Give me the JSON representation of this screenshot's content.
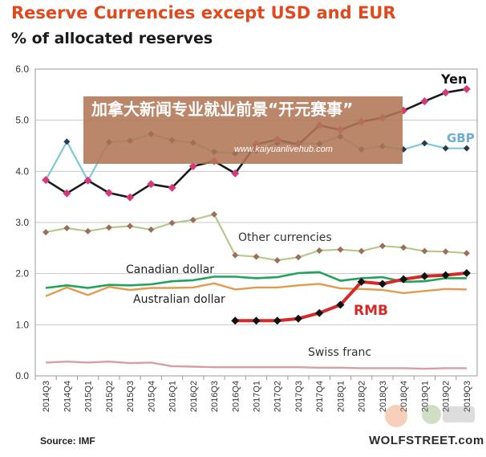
{
  "header": {
    "title": "Reserve Currencies except USD and EUR",
    "subtitle": "% of allocated reserves"
  },
  "footer": {
    "source": "Source: IMF",
    "brand": "WOLFSTREET.com"
  },
  "overlay": {
    "title": "加拿大新闻专业就业前景“开元赛事”",
    "url": "www.kaiyuanlivehub.com"
  },
  "colors": {
    "yen": "#1a1a1a",
    "yen_marker": "#d6397a",
    "gbp": "#7ec8d8",
    "gbp_marker": "#2b3a4a",
    "other": "#b5c98c",
    "other_marker": "#9a6e5a",
    "cad": "#22a35a",
    "aud": "#e39a4e",
    "rmb": "#d42a2a",
    "rmb_marker": "#111111",
    "chf": "#d4a0a6",
    "grid": "#c8c8c8",
    "title": "#e0481d",
    "overlay": "#b27656"
  },
  "chart_data": {
    "type": "line",
    "title": "Reserve Currencies except USD and EUR",
    "ylabel": "% of allocated reserves",
    "ylim": [
      0,
      6
    ],
    "yticks": [
      "0.0",
      "1.0",
      "2.0",
      "3.0",
      "4.0",
      "5.0",
      "6.0"
    ],
    "grid": true,
    "categories": [
      "2014Q3",
      "2014Q4",
      "2015Q1",
      "2015Q2",
      "2015Q3",
      "2015Q4",
      "2016Q1",
      "2016Q2",
      "2016Q3",
      "2016Q4",
      "2017Q1",
      "2017Q2",
      "2017Q3",
      "2017Q4",
      "2018Q1",
      "2018Q2",
      "2018Q3",
      "2018Q4",
      "2019Q1",
      "2019Q2",
      "2019Q3"
    ],
    "series": [
      {
        "name": "Yen",
        "key": "yen",
        "values": [
          3.83,
          3.57,
          3.82,
          3.58,
          3.49,
          3.75,
          3.68,
          4.1,
          4.2,
          3.96,
          4.53,
          4.62,
          4.52,
          4.9,
          4.81,
          4.97,
          5.05,
          5.19,
          5.37,
          5.54,
          5.61
        ]
      },
      {
        "name": "GBP",
        "key": "gbp",
        "values": [
          3.83,
          4.58,
          3.82,
          4.57,
          4.6,
          4.73,
          4.61,
          4.56,
          4.38,
          4.35,
          4.4,
          4.55,
          4.55,
          4.54,
          4.68,
          4.43,
          4.49,
          4.43,
          4.55,
          4.45,
          4.45
        ]
      },
      {
        "name": "Other currencies",
        "key": "other",
        "values": [
          2.81,
          2.89,
          2.83,
          2.9,
          2.93,
          2.86,
          2.99,
          3.05,
          3.16,
          2.36,
          2.33,
          2.26,
          2.32,
          2.45,
          2.47,
          2.44,
          2.54,
          2.51,
          2.44,
          2.43,
          2.4
        ]
      },
      {
        "name": "Canadian dollar",
        "key": "cad",
        "values": [
          1.72,
          1.77,
          1.72,
          1.78,
          1.77,
          1.79,
          1.85,
          1.87,
          1.94,
          1.94,
          1.91,
          1.93,
          2.01,
          2.03,
          1.86,
          1.91,
          1.93,
          1.84,
          1.85,
          1.91,
          1.91
        ]
      },
      {
        "name": "Australian dollar",
        "key": "aud",
        "values": [
          1.56,
          1.73,
          1.58,
          1.74,
          1.68,
          1.72,
          1.72,
          1.73,
          1.81,
          1.69,
          1.73,
          1.73,
          1.77,
          1.8,
          1.71,
          1.7,
          1.68,
          1.62,
          1.66,
          1.7,
          1.69
        ]
      },
      {
        "name": "RMB",
        "key": "rmb",
        "values": [
          null,
          null,
          null,
          null,
          null,
          null,
          null,
          null,
          null,
          1.08,
          1.08,
          1.08,
          1.12,
          1.23,
          1.39,
          1.84,
          1.8,
          1.89,
          1.95,
          1.97,
          2.01
        ]
      },
      {
        "name": "Swiss franc",
        "key": "chf",
        "values": [
          0.26,
          0.28,
          0.26,
          0.28,
          0.25,
          0.26,
          0.19,
          0.18,
          0.17,
          0.17,
          0.17,
          0.17,
          0.17,
          0.16,
          0.16,
          0.15,
          0.15,
          0.15,
          0.14,
          0.15,
          0.15
        ]
      }
    ]
  }
}
